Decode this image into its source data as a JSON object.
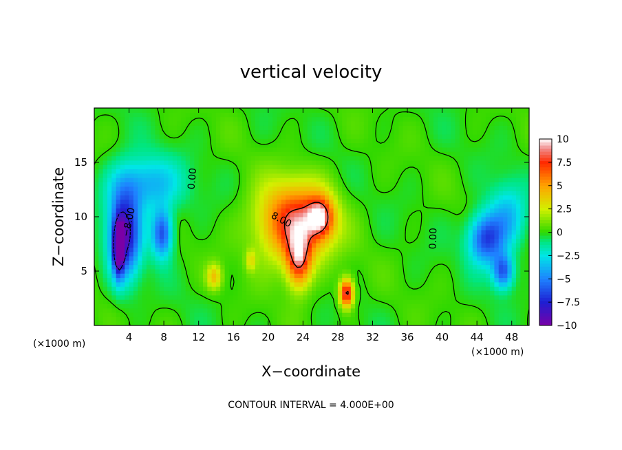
{
  "chart_data": {
    "type": "heatmap",
    "title": "vertical velocity",
    "xlabel": "X−coordinate",
    "ylabel": "Z−coordinate",
    "x_unit": "(×1000 m)",
    "z_unit": "(×1000 m)",
    "xlim": [
      0,
      50
    ],
    "ylim": [
      0,
      20
    ],
    "x_ticks": [
      {
        "value": 4,
        "label": "4"
      },
      {
        "value": 8,
        "label": "8"
      },
      {
        "value": 12,
        "label": "12"
      },
      {
        "value": 16,
        "label": "16"
      },
      {
        "value": 20,
        "label": "20"
      },
      {
        "value": 24,
        "label": "24"
      },
      {
        "value": 28,
        "label": "28"
      },
      {
        "value": 32,
        "label": "32"
      },
      {
        "value": 36,
        "label": "36"
      },
      {
        "value": 40,
        "label": "40"
      },
      {
        "value": 44,
        "label": "44"
      },
      {
        "value": 48,
        "label": "48"
      }
    ],
    "y_ticks": [
      {
        "value": 5,
        "label": "5"
      },
      {
        "value": 10,
        "label": "10"
      },
      {
        "value": 15,
        "label": "15"
      }
    ],
    "colorbar": {
      "min": -10,
      "max": 10,
      "tick_labels": [
        {
          "value": 10,
          "label": "10"
        },
        {
          "value": 7.5,
          "label": "7.5"
        },
        {
          "value": 5,
          "label": "5"
        },
        {
          "value": 2.5,
          "label": "2.5"
        },
        {
          "value": 0,
          "label": "0"
        },
        {
          "value": -2.5,
          "label": "−2.5"
        },
        {
          "value": -5,
          "label": "−5"
        },
        {
          "value": -7.5,
          "label": "−7.5"
        },
        {
          "value": -10,
          "label": "−10"
        }
      ],
      "colors": [
        "#7a00a6",
        "#1e1ed2",
        "#1e82ff",
        "#00e6e6",
        "#00e673",
        "#2ed800",
        "#d2f000",
        "#ffa300",
        "#ff2a00",
        "#f08c8c"
      ]
    },
    "contour_labels": [
      {
        "text": "0.00",
        "x": 11.3,
        "z": 13.5,
        "angle": -85
      },
      {
        "text": "0.00",
        "x": 39.0,
        "z": 8.0,
        "angle": -88
      },
      {
        "text": "8.00",
        "x": 21.5,
        "z": 9.7,
        "angle": 28
      },
      {
        "text": "−8.00",
        "x": 4.0,
        "z": 9.5,
        "angle": -78
      }
    ],
    "features": [
      {
        "sign": "positive",
        "x": 23.0,
        "z": 9.5,
        "sx": 4.2,
        "sz": 3.6,
        "peak": 8.0
      },
      {
        "sign": "positive",
        "x": 23.5,
        "z": 6.0,
        "sx": 1.4,
        "sz": 2.6,
        "peak": 7.0
      },
      {
        "sign": "positive",
        "x": 26.0,
        "z": 10.0,
        "sx": 1.5,
        "sz": 1.8,
        "peak": 6.5
      },
      {
        "sign": "positive",
        "x": 29.0,
        "z": 3.0,
        "sx": 0.8,
        "sz": 1.3,
        "peak": 9.0
      },
      {
        "sign": "positive",
        "x": 13.8,
        "z": 4.5,
        "sx": 0.9,
        "sz": 1.2,
        "peak": 3.8
      },
      {
        "sign": "positive",
        "x": 18.0,
        "z": 6.0,
        "sx": 0.6,
        "sz": 1.0,
        "peak": 2.5
      },
      {
        "sign": "negative",
        "x": 3.5,
        "z": 8.5,
        "sx": 1.8,
        "sz": 4.0,
        "peak": -8.5
      },
      {
        "sign": "negative",
        "x": 2.8,
        "z": 7.0,
        "sx": 0.6,
        "sz": 2.5,
        "peak": -7.5
      },
      {
        "sign": "negative",
        "x": 7.8,
        "z": 8.5,
        "sx": 1.2,
        "sz": 2.2,
        "peak": -6.5
      },
      {
        "sign": "negative",
        "x": 6.0,
        "z": 13.0,
        "sx": 4.0,
        "sz": 2.5,
        "peak": -4.0
      },
      {
        "sign": "negative",
        "x": 45.0,
        "z": 8.0,
        "sx": 2.0,
        "sz": 2.3,
        "peak": -6.5
      },
      {
        "sign": "negative",
        "x": 47.0,
        "z": 5.0,
        "sx": 1.2,
        "sz": 1.6,
        "peak": -6.0
      },
      {
        "sign": "negative",
        "x": 47.5,
        "z": 10.0,
        "sx": 2.2,
        "sz": 3.0,
        "peak": -3.5
      }
    ],
    "grid": false,
    "legend": "right colorbar"
  },
  "footer": {
    "contour_interval": "CONTOUR INTERVAL = 4.000E+00"
  }
}
